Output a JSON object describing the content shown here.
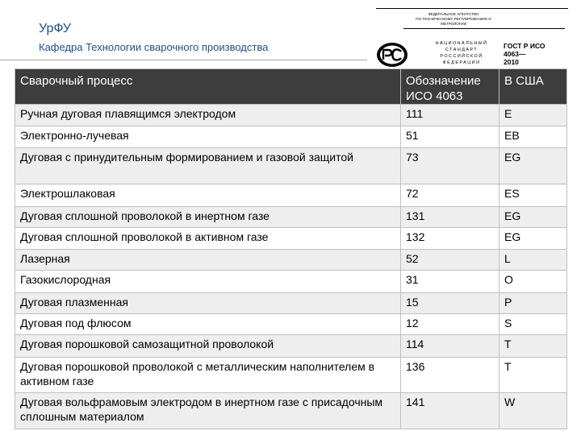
{
  "header": {
    "org": "УрФУ",
    "department": "Кафедра Технологии сварочного производства"
  },
  "gost_badge": {
    "agency_line1": "федеральное агентство",
    "agency_line2": "по техническому регулированию и метрологии",
    "national_lines": [
      "национальный",
      "стандарт",
      "российской",
      "федерации"
    ],
    "code_lines": [
      "ГОСТ Р ИСО",
      "4063—",
      "2010"
    ]
  },
  "table": {
    "headers": [
      "Сварочный процесс",
      "Обозначение ИСО 4063",
      "В США"
    ],
    "rows": [
      [
        "Ручная дуговая плавящимся электродом",
        "111",
        "E"
      ],
      [
        "Электронно-лучевая",
        "51",
        "EB"
      ],
      [
        "Дуговая с принудительным формированием и газовой защитой",
        "73",
        "EG"
      ],
      [
        "Электрошлаковая",
        "72",
        "ES"
      ],
      [
        "Дуговая сплошной проволокой в инертном газе",
        "131",
        "EG"
      ],
      [
        "Дуговая сплошной проволокой в активном газе",
        "132",
        "EG"
      ],
      [
        "Лазерная",
        "52",
        "L"
      ],
      [
        "Газокислородная",
        "31",
        "O"
      ],
      [
        "Дуговая плазменная",
        "15",
        "P"
      ],
      [
        "Дуговая под флюсом",
        "12",
        "S"
      ],
      [
        "Дуговая порошковой самозащитной проволокой",
        "114",
        "T"
      ],
      [
        "Дуговая порошковой проволокой с металлическим наполнителем в активном газе",
        "136",
        "T"
      ],
      [
        "Дуговая вольфрамовым электродом в инертном газе с присадочным сплошным материалом",
        "141",
        "W"
      ]
    ]
  }
}
